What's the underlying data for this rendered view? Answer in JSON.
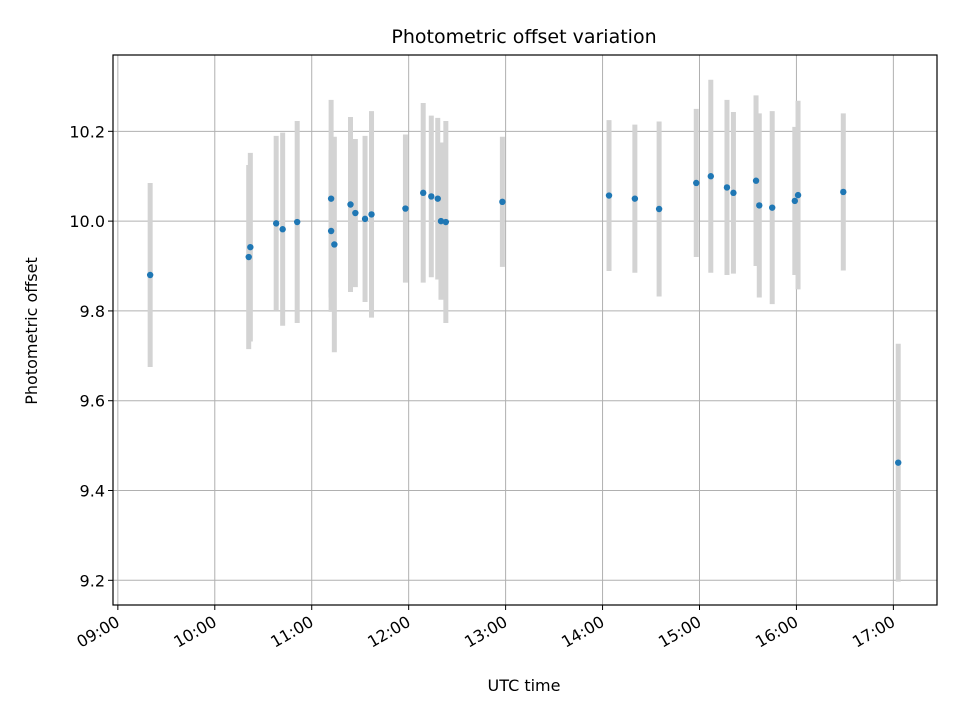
{
  "chart_data": {
    "type": "scatter",
    "title": "Photometric offset variation",
    "xlabel": "UTC time",
    "ylabel": "Photometric offset",
    "x_ticks": [
      "09:00",
      "10:00",
      "11:00",
      "12:00",
      "13:00",
      "14:00",
      "15:00",
      "16:00",
      "17:00"
    ],
    "y_ticks": [
      "9.2",
      "9.4",
      "9.6",
      "9.8",
      "10.0",
      "10.2"
    ],
    "xlim": [
      "08:57",
      "17:27"
    ],
    "ylim": [
      9.145,
      10.37
    ],
    "grid": true,
    "colors": {
      "point": "#1f77b4",
      "errorbar": "#d3d3d3",
      "grid": "#b0b0b0"
    },
    "series": [
      {
        "points": [
          {
            "time": "09:20",
            "y": 9.88,
            "err": 0.205
          },
          {
            "time": "10:21",
            "y": 9.92,
            "err": 0.205
          },
          {
            "time": "10:22",
            "y": 9.942,
            "err": 0.21
          },
          {
            "time": "10:38",
            "y": 9.995,
            "err": 0.195
          },
          {
            "time": "10:42",
            "y": 9.982,
            "err": 0.215
          },
          {
            "time": "10:51",
            "y": 9.998,
            "err": 0.225
          },
          {
            "time": "11:12",
            "y": 9.978,
            "err": 0.18
          },
          {
            "time": "11:12",
            "y": 10.05,
            "err": 0.22
          },
          {
            "time": "11:14",
            "y": 9.948,
            "err": 0.24
          },
          {
            "time": "11:24",
            "y": 10.037,
            "err": 0.195
          },
          {
            "time": "11:27",
            "y": 10.018,
            "err": 0.165
          },
          {
            "time": "11:33",
            "y": 10.005,
            "err": 0.185
          },
          {
            "time": "11:37",
            "y": 10.015,
            "err": 0.23
          },
          {
            "time": "11:58",
            "y": 10.028,
            "err": 0.165
          },
          {
            "time": "12:09",
            "y": 10.063,
            "err": 0.2
          },
          {
            "time": "12:14",
            "y": 10.055,
            "err": 0.18
          },
          {
            "time": "12:18",
            "y": 10.05,
            "err": 0.18
          },
          {
            "time": "12:20",
            "y": 10.0,
            "err": 0.175
          },
          {
            "time": "12:23",
            "y": 9.998,
            "err": 0.225
          },
          {
            "time": "12:58",
            "y": 10.043,
            "err": 0.145
          },
          {
            "time": "14:04",
            "y": 10.057,
            "err": 0.168
          },
          {
            "time": "14:20",
            "y": 10.05,
            "err": 0.165
          },
          {
            "time": "14:35",
            "y": 10.027,
            "err": 0.195
          },
          {
            "time": "14:58",
            "y": 10.085,
            "err": 0.165
          },
          {
            "time": "15:07",
            "y": 10.1,
            "err": 0.215
          },
          {
            "time": "15:17",
            "y": 10.075,
            "err": 0.195
          },
          {
            "time": "15:21",
            "y": 10.063,
            "err": 0.18
          },
          {
            "time": "15:35",
            "y": 10.09,
            "err": 0.19
          },
          {
            "time": "15:37",
            "y": 10.035,
            "err": 0.205
          },
          {
            "time": "15:45",
            "y": 10.03,
            "err": 0.215
          },
          {
            "time": "15:59",
            "y": 10.045,
            "err": 0.165
          },
          {
            "time": "16:01",
            "y": 10.058,
            "err": 0.21
          },
          {
            "time": "16:29",
            "y": 10.065,
            "err": 0.175
          },
          {
            "time": "17:03",
            "y": 9.462,
            "err": 0.265
          }
        ]
      }
    ]
  }
}
